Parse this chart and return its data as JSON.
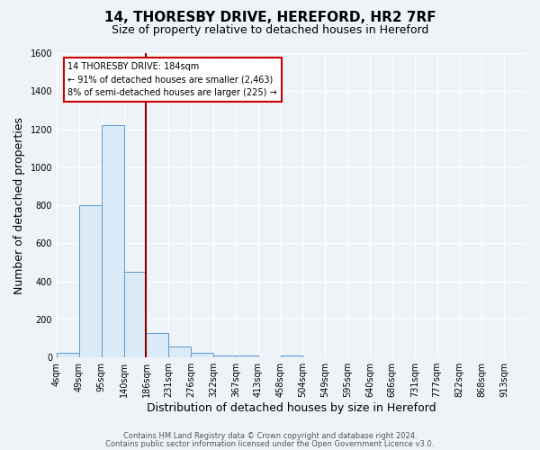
{
  "title_line1": "14, THORESBY DRIVE, HEREFORD, HR2 7RF",
  "title_line2": "Size of property relative to detached houses in Hereford",
  "xlabel": "Distribution of detached houses by size in Hereford",
  "ylabel": "Number of detached properties",
  "footer_line1": "Contains HM Land Registry data © Crown copyright and database right 2024.",
  "footer_line2": "Contains public sector information licensed under the Open Government Licence v3.0.",
  "bin_labels": [
    "4sqm",
    "49sqm",
    "95sqm",
    "140sqm",
    "186sqm",
    "231sqm",
    "276sqm",
    "322sqm",
    "367sqm",
    "413sqm",
    "458sqm",
    "504sqm",
    "549sqm",
    "595sqm",
    "640sqm",
    "686sqm",
    "731sqm",
    "777sqm",
    "822sqm",
    "868sqm",
    "913sqm"
  ],
  "bar_values": [
    25,
    800,
    1220,
    450,
    130,
    55,
    25,
    10,
    10,
    0,
    10,
    0,
    0,
    0,
    0,
    0,
    0,
    0,
    0,
    0,
    0
  ],
  "bar_color_face": "#daeaf7",
  "bar_color_edge": "#5b9bd5",
  "vline_color": "#8b0000",
  "annotation_text": "14 THORESBY DRIVE: 184sqm\n← 91% of detached houses are smaller (2,463)\n8% of semi-detached houses are larger (225) →",
  "annotation_box_color": "white",
  "annotation_box_edge": "#cc0000",
  "ylim": [
    0,
    1600
  ],
  "yticks": [
    0,
    200,
    400,
    600,
    800,
    1000,
    1200,
    1400,
    1600
  ],
  "bg_color": "#eef3f8",
  "grid_color": "white",
  "title_fontsize": 11,
  "subtitle_fontsize": 9
}
